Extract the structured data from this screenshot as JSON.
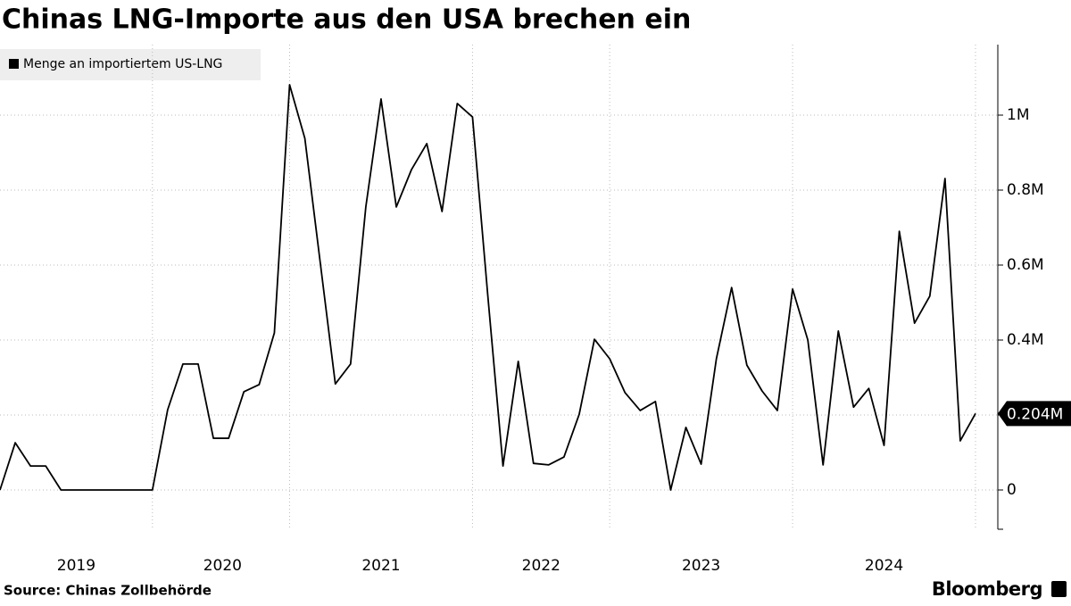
{
  "chart_data": {
    "type": "line",
    "title": "Chinas LNG-Importe aus den USA brechen ein",
    "source": "Source: Chinas Zollbehörde",
    "brand": "Bloomberg",
    "categories": [
      null,
      null,
      null,
      null,
      null,
      null,
      null,
      null,
      null,
      null,
      null,
      null,
      null,
      null,
      null,
      null,
      null,
      null,
      null,
      null,
      null,
      null,
      null,
      null,
      null,
      null,
      null,
      null,
      null,
      null,
      null,
      null,
      null,
      null,
      null,
      null,
      null,
      null,
      null,
      null,
      null,
      null,
      null,
      null,
      null,
      null,
      null,
      null,
      null,
      null,
      null,
      null,
      null,
      null,
      null,
      null,
      null,
      null,
      null,
      null,
      null,
      null,
      null,
      null,
      null
    ],
    "series": [
      {
        "name": "Menge an importiertem US-LNG",
        "color": "#000000",
        "values": [
          0,
          126000,
          64000,
          64000,
          0,
          0,
          0,
          0,
          0,
          0,
          0,
          214000,
          336000,
          336000,
          138000,
          138000,
          262000,
          281000,
          419000,
          1081000,
          938000,
          610000,
          283000,
          336000,
          755000,
          1043000,
          755000,
          855000,
          924000,
          743000,
          1031000,
          995000,
          520000,
          64000,
          343000,
          71000,
          67000,
          88000,
          202000,
          402000,
          350000,
          260000,
          212000,
          236000,
          0,
          167000,
          69000,
          350000,
          540000,
          333000,
          264000,
          212000,
          536000,
          400000,
          67000,
          424000,
          221000,
          271000,
          119000,
          690000,
          445000,
          517000,
          831000,
          131000,
          204000
        ],
        "value_labels": [
          null,
          null,
          null,
          null,
          null,
          null,
          null,
          null,
          null,
          null,
          null,
          null,
          null,
          null,
          null,
          null,
          null,
          null,
          null,
          null,
          null,
          null,
          null,
          null,
          null,
          null,
          null,
          null,
          null,
          null,
          null,
          null,
          null,
          null,
          null,
          null,
          null,
          null,
          null,
          null,
          null,
          null,
          null,
          null,
          null,
          null,
          null,
          null,
          null,
          null,
          null,
          null,
          null,
          null,
          null,
          null,
          null,
          null,
          null,
          null,
          null,
          null,
          null,
          null,
          "0.204M"
        ]
      }
    ],
    "xlim": [
      0,
      64
    ],
    "xticks": [
      {
        "value": 5,
        "label": "2019"
      },
      {
        "value": 14.6,
        "label": "2020"
      },
      {
        "value": 25,
        "label": "2021"
      },
      {
        "value": 35.5,
        "label": "2022"
      },
      {
        "value": 46,
        "label": "2023"
      },
      {
        "value": 58,
        "label": "2024"
      }
    ],
    "xgrid": [
      10,
      19,
      31,
      40,
      52,
      64
    ],
    "ylim": [
      -100000,
      1200000
    ],
    "yticks": [
      0,
      {
        "value": 200000,
        "label": "0.2M"
      },
      {
        "value": 400000,
        "label": "0.4M"
      },
      {
        "value": 600000,
        "label": "0.6M"
      },
      {
        "value": 800000,
        "label": "0.8M"
      },
      {
        "value": 1000000,
        "label": "1M"
      }
    ],
    "grid": true,
    "legend": "top-left"
  }
}
